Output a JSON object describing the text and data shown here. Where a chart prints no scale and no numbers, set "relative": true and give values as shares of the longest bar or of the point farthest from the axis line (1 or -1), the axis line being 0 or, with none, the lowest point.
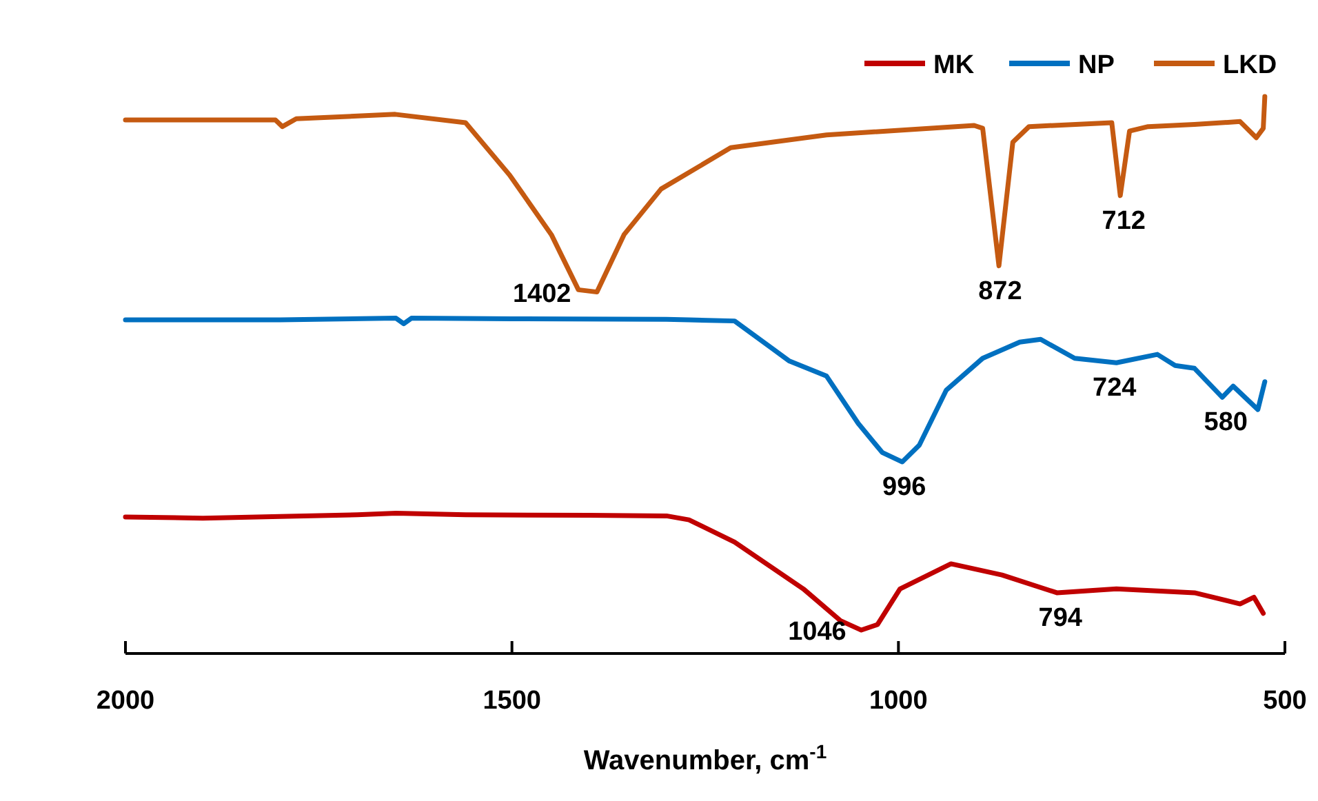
{
  "chart_data": {
    "type": "line",
    "relative": true,
    "xlabel": "Wavenumber, cm$^{-1}$",
    "xlim": [
      2000,
      500
    ],
    "xticks": [
      2000,
      1500,
      1000,
      500
    ],
    "legend": "top right",
    "grid": false,
    "marker": "none",
    "line_style": "solid",
    "series": [
      {
        "name": "MK",
        "color": "#c00000",
        "x": [
          2000,
          1900,
          1800,
          1700,
          1650,
          1560,
          1400,
          1300,
          1271,
          1212,
          1123,
          1075,
          1048,
          1027,
          998,
          932,
          866,
          795,
          718,
          617,
          558,
          540,
          528
        ],
        "values": [
          0.245,
          0.243,
          0.246,
          0.249,
          0.252,
          0.249,
          0.248,
          0.247,
          0.24,
          0.2,
          0.116,
          0.059,
          0.042,
          0.052,
          0.116,
          0.161,
          0.141,
          0.109,
          0.116,
          0.109,
          0.089,
          0.101,
          0.072
        ]
      },
      {
        "name": "NP",
        "color": "#0070c0",
        "x": [
          2000,
          1800,
          1650,
          1640,
          1630,
          1500,
          1300,
          1271,
          1212,
          1141,
          1093,
          1052,
          1021,
          995,
          973,
          938,
          891,
          843,
          816,
          772,
          718,
          665,
          642,
          617,
          581,
          567,
          535,
          526
        ],
        "values": [
          0.599,
          0.599,
          0.602,
          0.592,
          0.602,
          0.601,
          0.6,
          0.599,
          0.597,
          0.525,
          0.498,
          0.413,
          0.361,
          0.344,
          0.374,
          0.473,
          0.53,
          0.559,
          0.564,
          0.53,
          0.522,
          0.537,
          0.517,
          0.512,
          0.46,
          0.48,
          0.438,
          0.488
        ]
      },
      {
        "name": "LKD",
        "color": "#c55a11",
        "x": [
          2000,
          1806,
          1797,
          1779,
          1651,
          1560,
          1503,
          1449,
          1414,
          1390,
          1355,
          1307,
          1217,
          1093,
          902,
          891,
          870,
          852,
          831,
          724,
          713,
          701,
          677,
          617,
          558,
          537,
          528,
          526
        ],
        "values": [
          0.958,
          0.958,
          0.946,
          0.96,
          0.968,
          0.953,
          0.859,
          0.752,
          0.653,
          0.649,
          0.752,
          0.834,
          0.908,
          0.931,
          0.948,
          0.943,
          0.696,
          0.918,
          0.946,
          0.953,
          0.822,
          0.938,
          0.946,
          0.95,
          0.955,
          0.926,
          0.943,
          1.0
        ]
      }
    ],
    "annotations": [
      {
        "text": "1402",
        "x": 1402,
        "y": 0.649
      },
      {
        "text": "872",
        "x": 872,
        "y": 0.696
      },
      {
        "text": "712",
        "x": 712,
        "y": 0.822
      },
      {
        "text": "996",
        "x": 996,
        "y": 0.344
      },
      {
        "text": "724",
        "x": 724,
        "y": 0.522
      },
      {
        "text": "580",
        "x": 580,
        "y": 0.46
      },
      {
        "text": "1046",
        "x": 1046,
        "y": 0.042
      },
      {
        "text": "794",
        "x": 794,
        "y": 0.109
      }
    ]
  }
}
